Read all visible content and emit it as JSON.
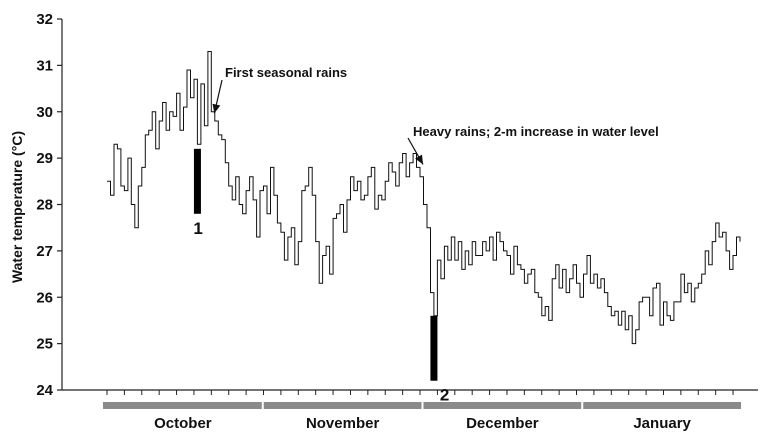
{
  "chart_data": {
    "type": "line",
    "title": "",
    "xlabel": "",
    "ylabel": "Water temperature (°C)",
    "ylim": [
      24,
      32
    ],
    "yticks": [
      "24",
      "25",
      "26",
      "27",
      "28",
      "29",
      "30",
      "31",
      "32"
    ],
    "grid": false,
    "x_unit": "day from 1 October",
    "months": [
      "October",
      "November",
      "December",
      "January"
    ],
    "series": [
      {
        "values": [
          28.5,
          28.2,
          29.3,
          29.2,
          28.4,
          28.3,
          29.0,
          28.0,
          27.5,
          28.4,
          28.8,
          29.5,
          29.6,
          30.0,
          29.2,
          29.8,
          30.2,
          29.6,
          30.0,
          29.9,
          30.4,
          29.6,
          30.1,
          30.9,
          30.3,
          30.7,
          29.3,
          30.6,
          29.7,
          31.3,
          30.0,
          29.8,
          29.5,
          29.4,
          28.9,
          28.4,
          28.1,
          28.6,
          28.0,
          27.8,
          28.3,
          28.6,
          28.1,
          27.3,
          28.3,
          28.4,
          27.8,
          28.8,
          28.2,
          27.6,
          27.4,
          26.8,
          27.3,
          27.5,
          26.7,
          27.2,
          28.3,
          28.4,
          28.8,
          28.2,
          27.2,
          26.3,
          26.9,
          27.1,
          26.5,
          27.7,
          27.8,
          28.0,
          27.4,
          28.1,
          28.6,
          28.3,
          28.5,
          28.1,
          28.2,
          28.6,
          28.8,
          27.9,
          28.2,
          28.1,
          28.5,
          28.9,
          28.7,
          28.4,
          28.9,
          29.1,
          28.6,
          28.9,
          29.1,
          28.8,
          28.6,
          28.0,
          27.5,
          26.1,
          25.6,
          26.8,
          26.4,
          27.1,
          26.8,
          27.3,
          26.8,
          27.2,
          26.6,
          27.0,
          26.7,
          27.2,
          26.9,
          26.9,
          27.2,
          27.0,
          27.3,
          26.8,
          27.4,
          27.2,
          27.0,
          26.9,
          26.5,
          27.1,
          26.7,
          26.6,
          26.3,
          26.5,
          26.6,
          26.1,
          26.0,
          25.6,
          25.8,
          25.5,
          26.4,
          26.7,
          26.2,
          26.6,
          26.1,
          26.4,
          26.7,
          26.3,
          26.0,
          26.5,
          26.9,
          26.3,
          26.5,
          26.2,
          26.4,
          26.1,
          25.8,
          25.6,
          25.7,
          25.4,
          25.7,
          25.3,
          25.6,
          25.0,
          25.3,
          25.9,
          26.0,
          26.0,
          25.6,
          26.2,
          26.3,
          25.4,
          25.9,
          25.6,
          25.5,
          25.9,
          25.9,
          26.5,
          26.1,
          26.3,
          25.9,
          26.2,
          26.3,
          26.5,
          27.0,
          26.7,
          27.2,
          27.6,
          27.3,
          27.4,
          27.0,
          26.6,
          26.9,
          27.3,
          27.2
        ]
      }
    ],
    "annotations": [
      {
        "text": "First seasonal rains",
        "day": 30,
        "value": 29.9
      },
      {
        "text": "Heavy rains; 2-m increase in water level",
        "day": 90,
        "value": 28.8
      }
    ],
    "markers": [
      {
        "label": "1",
        "day": 26,
        "from": 27.8,
        "to": 29.2
      },
      {
        "label": "2",
        "day": 94,
        "from": 24.2,
        "to": 25.6
      }
    ]
  }
}
